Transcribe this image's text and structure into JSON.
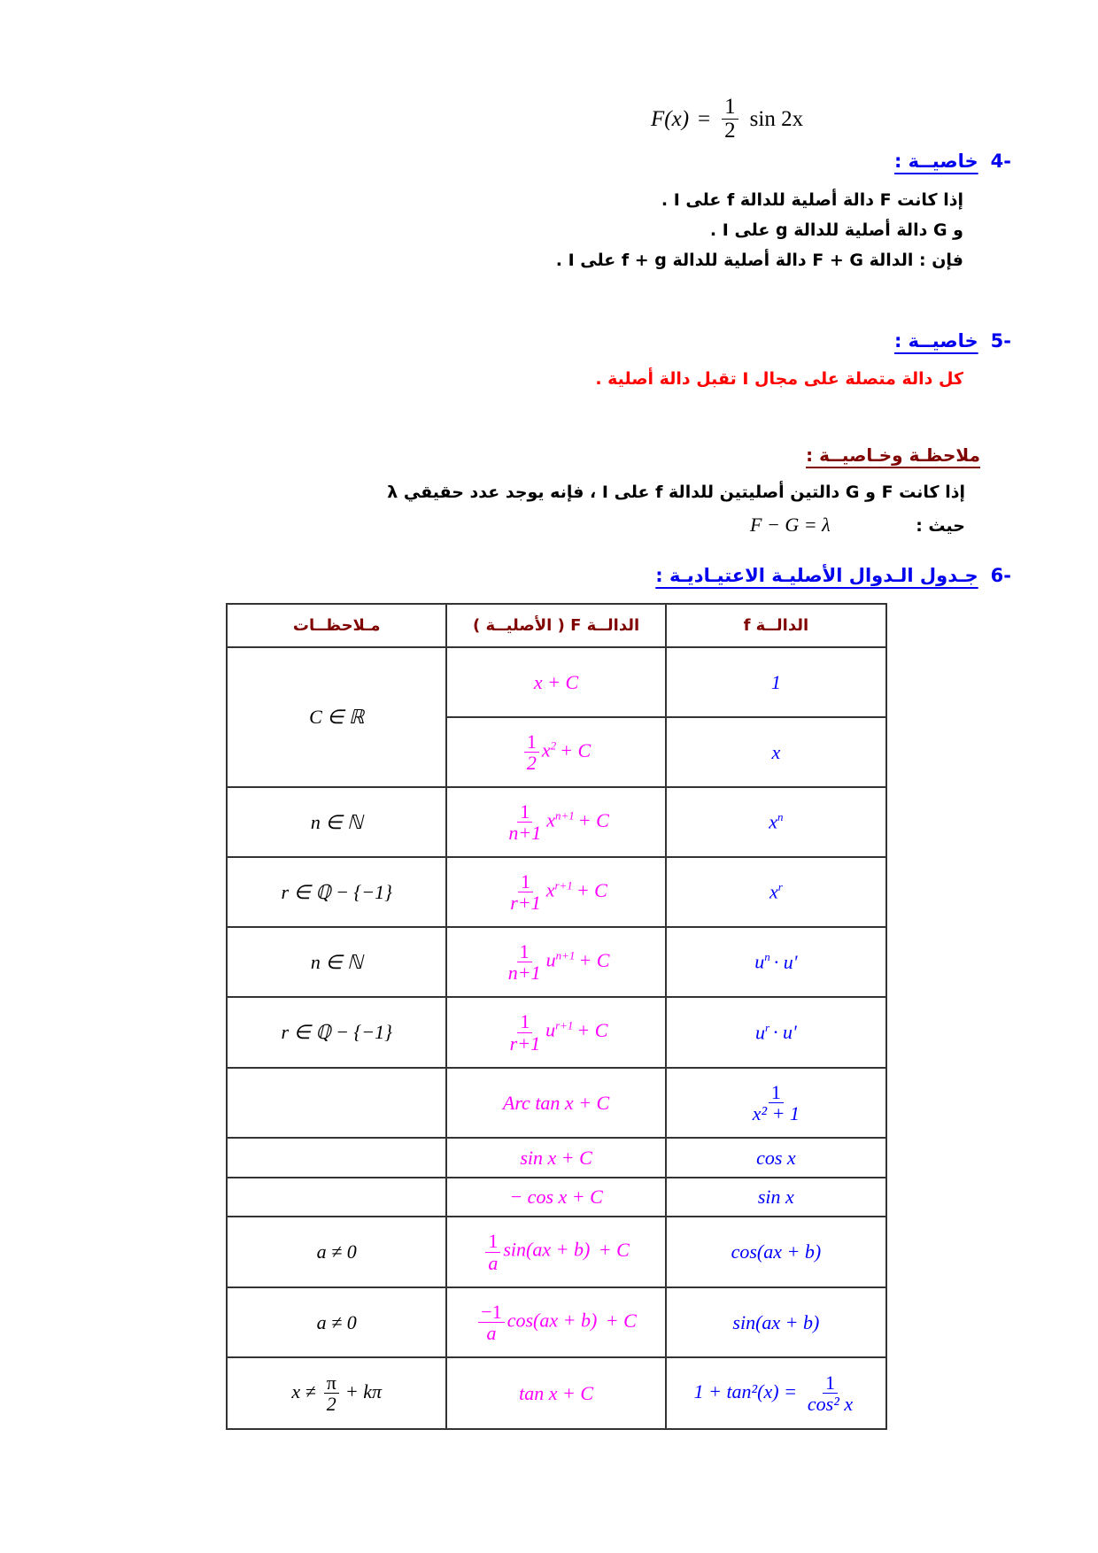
{
  "formula": {
    "lhs": "F(x)",
    "eq": "=",
    "num": "1",
    "den": "2",
    "rhs": "sin 2x"
  },
  "section4": {
    "number": "-4",
    "title": "خاصيــة :",
    "lines": [
      "إذا كانت  F  دالة أصلية للدالة  f  على  I .",
      "و   G  دالة أصلية للدالة  g  على  I .",
      "فإن : الدالة   F + G   دالة أصلية للدالة   f + g  على  I ."
    ]
  },
  "section5": {
    "number": "-5",
    "title": "خاصيــة :",
    "statement": "كل دالة متصلة على مجال  I  تقبل دالة أصلية ."
  },
  "remark": {
    "title": "ملاحظـة وخـاصيــة :",
    "line1": "إذا كانت  F  و  G  دالتين أصليتين للدالة  f  على  I ،  فإنه يوجد عدد حقيقي  λ",
    "line2_label": "حيث :",
    "line2_math": "F − G = λ"
  },
  "section6": {
    "number": "-6",
    "title": "جـدول الـدوال الأصليـة الاعتيـاديـة :"
  },
  "colors": {
    "heading": "#0000ee",
    "remark": "#800000",
    "red_statement": "#ff0000",
    "col_F": "#ff00ff",
    "col_f": "#0000ff"
  },
  "table": {
    "headers": {
      "notes": "مـلاحظــات",
      "F": "الدالــة  F  ( الأصليــة )",
      "f": "الدالــة  f"
    },
    "rows": [
      {
        "note": {
          "text": "C ∈ ℝ"
        },
        "F": {
          "text": "x + C"
        },
        "f": {
          "text": "1"
        }
      },
      {
        "F": {
          "num": "1",
          "den": "2",
          "base": "x",
          "sup": "2",
          "tail": "+ C"
        },
        "f": {
          "text": "x"
        }
      },
      {
        "note": {
          "text": "n ∈ ℕ"
        },
        "F": {
          "num": "1",
          "den": "n+1",
          "base": "x",
          "sup": "n+1",
          "tail": "+ C"
        },
        "f": {
          "base": "x",
          "sup": "n"
        }
      },
      {
        "note": {
          "text": "r ∈ ℚ − {−1}"
        },
        "F": {
          "num": "1",
          "den": "r+1",
          "base": "x",
          "sup": "r+1",
          "tail": "+ C"
        },
        "f": {
          "base": "x",
          "sup": "r"
        }
      },
      {
        "note": {
          "text": "n ∈ ℕ"
        },
        "F": {
          "num": "1",
          "den": "n+1",
          "base": "u",
          "sup": "n+1",
          "tail": "+ C"
        },
        "f": {
          "base": "u",
          "sup": "n",
          "tail": "· u'"
        }
      },
      {
        "note": {
          "text": "r ∈ ℚ − {−1}"
        },
        "F": {
          "num": "1",
          "den": "r+1",
          "base": "u",
          "sup": "r+1",
          "tail": "+ C"
        },
        "f": {
          "base": "u",
          "sup": "r",
          "tail": "· u'"
        }
      },
      {
        "note": {
          "text": ""
        },
        "F": {
          "text": "Arc tan x  + C"
        },
        "f": {
          "num": "1",
          "den": "x² + 1"
        }
      },
      {
        "note": {
          "text": ""
        },
        "F": {
          "text": "sin x  + C"
        },
        "f": {
          "text": "cos x"
        }
      },
      {
        "note": {
          "text": ""
        },
        "F": {
          "text": "− cos x  + C"
        },
        "f": {
          "text": "sin x"
        }
      },
      {
        "note": {
          "text": "a ≠ 0"
        },
        "F": {
          "num": "1",
          "den": "a",
          "base": "sin(ax + b)",
          "tail": " + C"
        },
        "f": {
          "text": "cos(ax + b)"
        }
      },
      {
        "note": {
          "text": "a ≠ 0"
        },
        "F": {
          "num": "−1",
          "den": "a",
          "base": "cos(ax + b)",
          "tail": " + C"
        },
        "f": {
          "text": "sin(ax + b)"
        }
      },
      {
        "note": {
          "pre": "x ≠",
          "num": "π",
          "den": "2",
          "tail": "+ kπ"
        },
        "F": {
          "text": "tan x  + C"
        },
        "f": {
          "pre": "1 + tan²(x) =",
          "num": "1",
          "den": "cos² x"
        }
      }
    ]
  }
}
